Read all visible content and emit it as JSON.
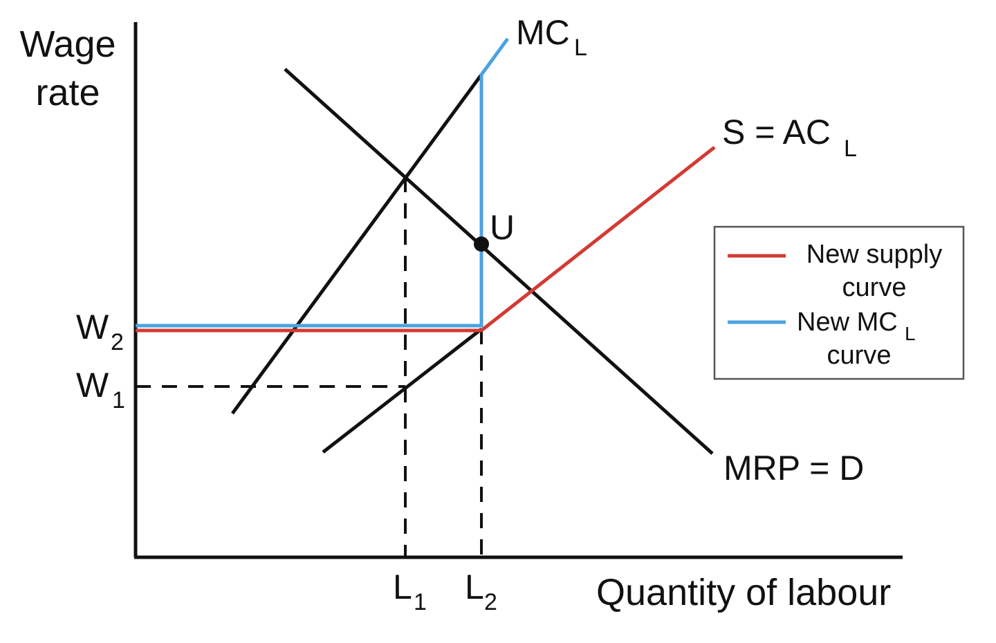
{
  "axes": {
    "y_label_line1": "Wage",
    "y_label_line2": "rate",
    "x_label": "Quantity of labour"
  },
  "ticks": {
    "w2_main": "W",
    "w2_sub": "2",
    "w1_main": "W",
    "w1_sub": "1",
    "l1_main": "L",
    "l1_sub": "1",
    "l2_main": "L",
    "l2_sub": "2"
  },
  "curves": {
    "mc_main": "MC",
    "mc_sub": "L",
    "supply_main": "S = AC",
    "supply_sub": "L",
    "demand": "MRP = D",
    "point_u": "U"
  },
  "legend": {
    "supply_line1": "New supply",
    "supply_line2": "curve",
    "mc_line1_main": "New MC",
    "mc_line1_sub": "L",
    "mc_line2": "curve"
  },
  "colors": {
    "new_supply": "#d23b34",
    "new_mc": "#4aa3e0",
    "original_curves": "#111111"
  }
}
